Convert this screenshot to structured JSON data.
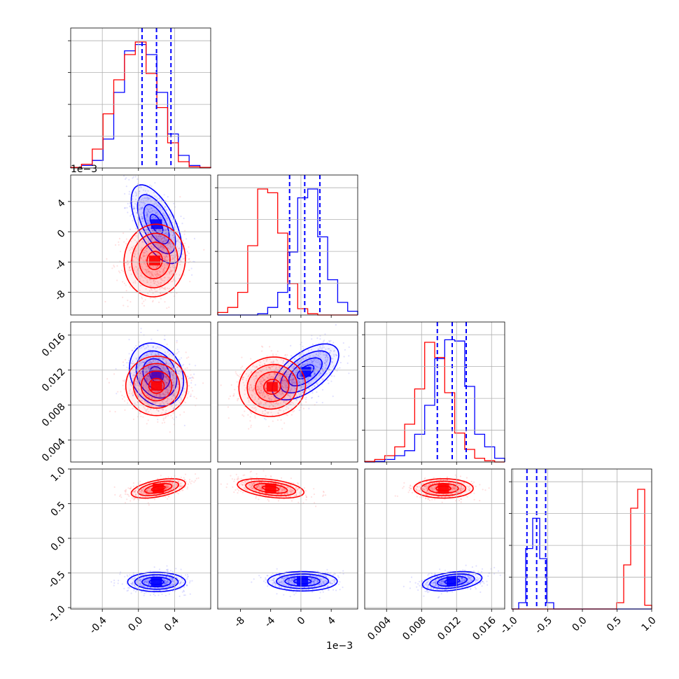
{
  "chart_data": {
    "type": "corner",
    "colors": {
      "primary": "#0000ff",
      "secondary": "#ff0000"
    },
    "quantile_lines": [
      [
        0.04,
        0.2,
        0.36
      ],
      [
        -0.0015,
        0.0005,
        0.0025
      ],
      [
        0.0098,
        0.0115,
        0.0131
      ],
      [
        -0.8,
        -0.66,
        -0.53
      ]
    ],
    "axes": {
      "x_ticks": [
        [
          "-0.4",
          "0.0",
          "0.4"
        ],
        [
          "-8",
          "-4",
          "0",
          "4"
        ],
        [
          "0.004",
          "0.008",
          "0.012",
          "0.016"
        ],
        [
          "-1.0",
          "-0.5",
          "0.0",
          "0.5",
          "1.0"
        ]
      ],
      "y_ticks": [
        [],
        [
          "4",
          "0",
          "-4",
          "-8"
        ],
        [
          "0.016",
          "0.012",
          "0.008",
          "0.004"
        ],
        [
          "1.0",
          "0.5",
          "0.0",
          "-0.5",
          "-1.0"
        ]
      ],
      "x_ranges": [
        [
          -0.75,
          0.8
        ],
        [
          -0.011,
          0.0075
        ],
        [
          0.0015,
          0.0175
        ],
        [
          -1.02,
          1.0
        ]
      ],
      "x_offset_label": "1e−3",
      "y_offset_label": "1e−3"
    },
    "histograms": [
      {
        "bins": [
          -0.75,
          0.8
        ],
        "series": [
          {
            "name": "",
            "color": "#0000ff",
            "values": [
              0.005,
              0.02,
              0.06,
              0.23,
              0.6,
              0.93,
              0.98,
              0.9,
              0.6,
              0.27,
              0.1,
              0.02,
              0.005
            ]
          },
          {
            "name": "",
            "color": "#ff0000",
            "values": [
              0.005,
              0.03,
              0.15,
              0.43,
              0.7,
              0.9,
              1.0,
              0.75,
              0.48,
              0.2,
              0.05,
              0.01,
              0.005
            ]
          }
        ]
      },
      {
        "bins": [
          -0.011,
          0.0075
        ],
        "series": [
          {
            "name": "",
            "color": "#0000ff",
            "values": [
              0.0,
              0.0,
              0.0,
              0.0,
              0.01,
              0.06,
              0.18,
              0.5,
              0.93,
              1.0,
              0.62,
              0.28,
              0.1,
              0.03
            ]
          },
          {
            "name": "",
            "color": "#ff0000",
            "values": [
              0.02,
              0.06,
              0.18,
              0.55,
              1.0,
              0.97,
              0.65,
              0.25,
              0.05,
              0.01,
              0.0,
              0.0,
              0.0,
              0.0
            ]
          }
        ]
      },
      {
        "bins": [
          0.0015,
          0.0175
        ],
        "series": [
          {
            "name": "",
            "color": "#0000ff",
            "values": [
              0.0,
              0.005,
              0.02,
              0.05,
              0.09,
              0.22,
              0.45,
              0.82,
              0.97,
              0.96,
              0.6,
              0.22,
              0.12,
              0.03
            ]
          },
          {
            "name": "",
            "color": "#ff0000",
            "values": [
              0.005,
              0.02,
              0.05,
              0.12,
              0.3,
              0.58,
              0.95,
              0.83,
              0.55,
              0.23,
              0.1,
              0.03,
              0.01,
              0.0
            ]
          }
        ]
      },
      {
        "bins": [
          -1.02,
          1.0
        ],
        "series": [
          {
            "name": "",
            "color": "#0000ff",
            "values": [
              0.0,
              0.05,
              0.48,
              0.72,
              0.4,
              0.05,
              0.0,
              0.0,
              0.0,
              0.0,
              0.0,
              0.0,
              0.0,
              0.0,
              0.0,
              0.0,
              0.0,
              0.0,
              0.0,
              0.0
            ]
          },
          {
            "name": "",
            "color": "#ff0000",
            "values": [
              0.0,
              0.0,
              0.0,
              0.0,
              0.0,
              0.0,
              0.0,
              0.0,
              0.0,
              0.0,
              0.0,
              0.0,
              0.0,
              0.0,
              0.0,
              0.05,
              0.35,
              0.8,
              0.95,
              0.03
            ]
          }
        ]
      }
    ],
    "pairs": [
      {
        "cell": [
          1,
          0
        ],
        "blobs": [
          {
            "color": "#0000ff",
            "mean": [
              0.2,
              0.001
            ],
            "std": [
              0.14,
              0.0026
            ],
            "corr": -0.6,
            "n": 700
          },
          {
            "color": "#ff0000",
            "mean": [
              0.18,
              -0.0038
            ],
            "std": [
              0.17,
              0.0024
            ],
            "corr": 0.05,
            "n": 700
          }
        ]
      },
      {
        "cell": [
          2,
          0
        ],
        "blobs": [
          {
            "color": "#0000ff",
            "mean": [
              0.2,
              0.0115
            ],
            "std": [
              0.15,
              0.0018
            ],
            "corr": -0.2,
            "n": 700
          },
          {
            "color": "#ff0000",
            "mean": [
              0.2,
              0.0102
            ],
            "std": [
              0.17,
              0.0017
            ],
            "corr": 0.0,
            "n": 700
          }
        ]
      },
      {
        "cell": [
          2,
          1
        ],
        "blobs": [
          {
            "color": "#0000ff",
            "mean": [
              0.0006,
              0.0118
            ],
            "std": [
              0.0022,
              0.0016
            ],
            "corr": 0.6,
            "n": 700
          },
          {
            "color": "#ff0000",
            "mean": [
              -0.0038,
              0.0101
            ],
            "std": [
              0.0022,
              0.0017
            ],
            "corr": 0.05,
            "n": 700
          }
        ]
      },
      {
        "cell": [
          3,
          0
        ],
        "blobs": [
          {
            "color": "#0000ff",
            "mean": [
              0.2,
              -0.63
            ],
            "std": [
              0.16,
              0.07
            ],
            "corr": 0.0,
            "n": 600
          },
          {
            "color": "#ff0000",
            "mean": [
              0.22,
              0.72
            ],
            "std": [
              0.15,
              0.07
            ],
            "corr": 0.5,
            "n": 600
          }
        ]
      },
      {
        "cell": [
          3,
          1
        ],
        "blobs": [
          {
            "color": "#0000ff",
            "mean": [
              0.0002,
              -0.62
            ],
            "std": [
              0.0023,
              0.07
            ],
            "corr": 0.0,
            "n": 600
          },
          {
            "color": "#ff0000",
            "mean": [
              -0.004,
              0.72
            ],
            "std": [
              0.0022,
              0.07
            ],
            "corr": -0.4,
            "n": 600
          }
        ]
      },
      {
        "cell": [
          3,
          2
        ],
        "blobs": [
          {
            "color": "#0000ff",
            "mean": [
              0.0115,
              -0.62
            ],
            "std": [
              0.0017,
              0.07
            ],
            "corr": 0.35,
            "n": 600
          },
          {
            "color": "#ff0000",
            "mean": [
              0.0105,
              0.72
            ],
            "std": [
              0.0017,
              0.07
            ],
            "corr": 0.0,
            "n": 600
          }
        ]
      }
    ]
  }
}
